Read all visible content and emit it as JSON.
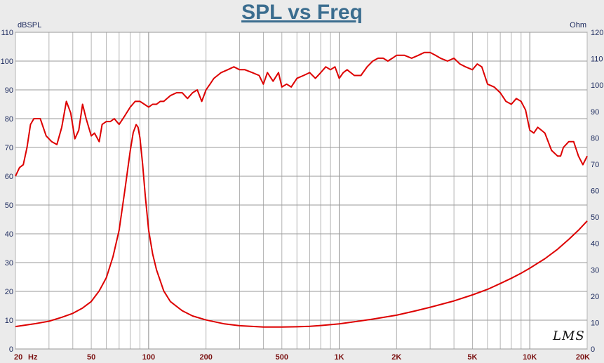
{
  "chart_data": {
    "type": "line",
    "title": "SPL vs Freq",
    "ylabel": "dBSPL",
    "y2label": "Ohm",
    "xscale": "log",
    "xlim": [
      20,
      20000
    ],
    "ylim": [
      0,
      110
    ],
    "y2lim": [
      0,
      120
    ],
    "grid": true,
    "x_ticks": [
      {
        "value": 20,
        "label": "20"
      },
      {
        "value": 50,
        "label": "50"
      },
      {
        "value": 100,
        "label": "100"
      },
      {
        "value": 200,
        "label": "200"
      },
      {
        "value": 500,
        "label": "500"
      },
      {
        "value": 1000,
        "label": "1K"
      },
      {
        "value": 2000,
        "label": "2K"
      },
      {
        "value": 5000,
        "label": "5K"
      },
      {
        "value": 10000,
        "label": "10K"
      },
      {
        "value": 20000,
        "label": "20K"
      }
    ],
    "x_unit_label": "Hz",
    "y_ticks": [
      0,
      10,
      20,
      30,
      40,
      50,
      60,
      70,
      80,
      90,
      100,
      110
    ],
    "y2_ticks": [
      0,
      10,
      20,
      30,
      40,
      50,
      60,
      70,
      80,
      90,
      100,
      110,
      120
    ],
    "series": [
      {
        "axis": "left",
        "color": "#dd0000",
        "x": [
          20,
          21,
          22,
          23,
          24,
          25,
          27,
          29,
          31,
          33,
          35,
          37,
          39,
          41,
          43,
          45,
          47,
          50,
          52,
          55,
          57,
          60,
          63,
          66,
          70,
          75,
          80,
          85,
          90,
          95,
          100,
          105,
          110,
          115,
          120,
          130,
          140,
          150,
          160,
          170,
          180,
          190,
          200,
          210,
          220,
          240,
          260,
          280,
          300,
          320,
          350,
          380,
          400,
          420,
          450,
          480,
          500,
          530,
          560,
          600,
          650,
          700,
          750,
          800,
          850,
          900,
          950,
          1000,
          1050,
          1100,
          1200,
          1300,
          1400,
          1500,
          1600,
          1700,
          1800,
          1900,
          2000,
          2200,
          2400,
          2600,
          2800,
          3000,
          3200,
          3400,
          3700,
          4000,
          4300,
          4600,
          5000,
          5300,
          5600,
          6000,
          6500,
          7000,
          7500,
          8000,
          8500,
          9000,
          9500,
          10000,
          10500,
          11000,
          11500,
          12000,
          13000,
          14000,
          14500,
          15000,
          16000,
          17000,
          18000,
          19000,
          20000
        ],
        "values": [
          60,
          63,
          64,
          70,
          78,
          80,
          80,
          74,
          72,
          71,
          77,
          86,
          82,
          73,
          76,
          85,
          80,
          74,
          75,
          72,
          78,
          79,
          79,
          80,
          78,
          81,
          84,
          86,
          86,
          85,
          84,
          85,
          85,
          86,
          86,
          88,
          89,
          89,
          87,
          89,
          90,
          86,
          90,
          92,
          94,
          96,
          97,
          98,
          97,
          97,
          96,
          95,
          92,
          96,
          93,
          96,
          91,
          92,
          91,
          94,
          95,
          96,
          94,
          96,
          98,
          97,
          98,
          94,
          96,
          97,
          95,
          95,
          98,
          100,
          101,
          101,
          100,
          101,
          102,
          102,
          101,
          102,
          103,
          103,
          102,
          101,
          100,
          101,
          99,
          98,
          97,
          99,
          98,
          92,
          91,
          89,
          86,
          85,
          87,
          86,
          83,
          76,
          75,
          77,
          76,
          75,
          69,
          67,
          67,
          70,
          72,
          72,
          67,
          64,
          67
        ]
      },
      {
        "axis": "right",
        "color": "#dd0000",
        "x": [
          20,
          25,
          30,
          35,
          40,
          45,
          50,
          55,
          60,
          65,
          70,
          75,
          80,
          83,
          86,
          88,
          90,
          93,
          96,
          100,
          105,
          110,
          120,
          130,
          150,
          170,
          200,
          250,
          300,
          400,
          500,
          600,
          700,
          800,
          1000,
          1200,
          1500,
          2000,
          2500,
          3000,
          4000,
          5000,
          6000,
          7000,
          8000,
          9000,
          10000,
          12000,
          14000,
          16000,
          18000,
          20000
        ],
        "values": [
          8.5,
          9.5,
          10.5,
          12,
          13.5,
          15.5,
          18,
          22,
          27,
          35,
          45,
          60,
          75,
          82,
          85,
          84,
          80,
          70,
          58,
          45,
          36,
          30,
          22,
          18,
          14.5,
          12.5,
          11,
          9.5,
          8.8,
          8.3,
          8.3,
          8.4,
          8.6,
          8.9,
          9.5,
          10.3,
          11.3,
          12.8,
          14.4,
          15.8,
          18.2,
          20.5,
          22.6,
          24.8,
          26.8,
          28.7,
          30.6,
          34.2,
          37.8,
          41.5,
          45,
          48.5
        ]
      }
    ]
  }
}
